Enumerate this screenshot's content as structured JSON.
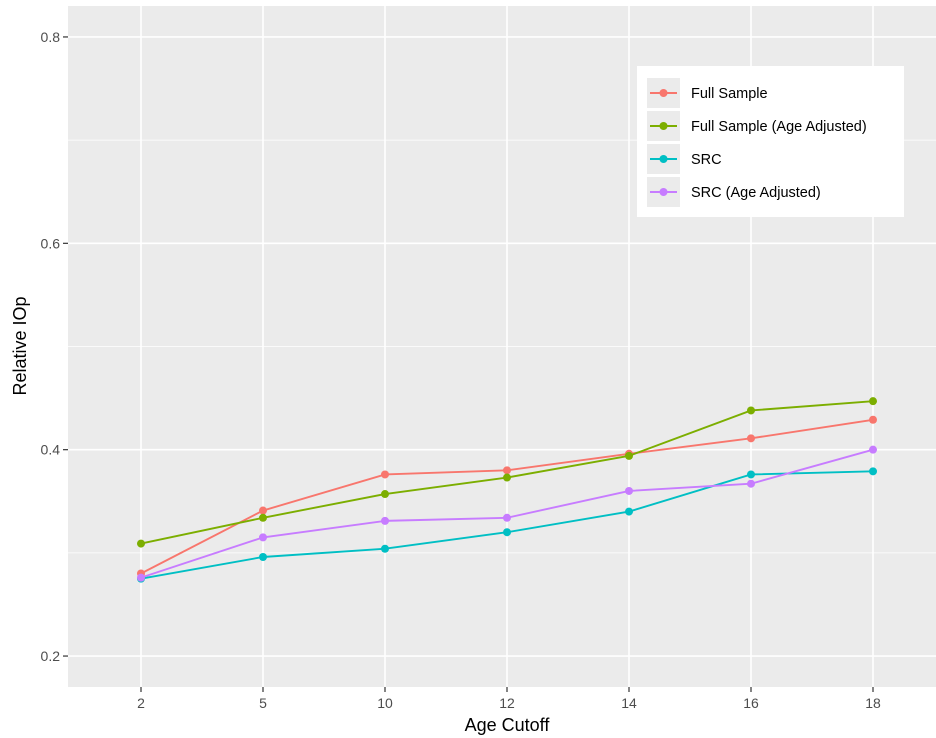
{
  "chart_data": {
    "type": "line",
    "title": "",
    "xlabel": "Age Cutoff",
    "ylabel": "Relative IOp",
    "categories": [
      "2",
      "5",
      "10",
      "12",
      "14",
      "16",
      "18"
    ],
    "ylim": [
      0.17,
      0.83
    ],
    "yticks": [
      0.2,
      0.4,
      0.6,
      0.8
    ],
    "ytick_labels": [
      "0.2",
      "0.4",
      "0.6",
      "0.8"
    ],
    "grid": true,
    "legend_position": "top-right",
    "series": [
      {
        "name": "Full Sample",
        "color": "#F8766D",
        "values": [
          0.28,
          0.341,
          0.376,
          0.38,
          0.396,
          0.411,
          0.429
        ]
      },
      {
        "name": "Full Sample (Age Adjusted)",
        "color": "#7CAE00",
        "values": [
          0.309,
          0.334,
          0.357,
          0.373,
          0.394,
          0.438,
          0.447
        ]
      },
      {
        "name": "SRC",
        "color": "#00BFC4",
        "values": [
          0.275,
          0.296,
          0.304,
          0.32,
          0.34,
          0.376,
          0.379
        ]
      },
      {
        "name": "SRC (Age Adjusted)",
        "color": "#C77CFF",
        "values": [
          0.276,
          0.315,
          0.331,
          0.334,
          0.36,
          0.367,
          0.4
        ]
      }
    ]
  }
}
